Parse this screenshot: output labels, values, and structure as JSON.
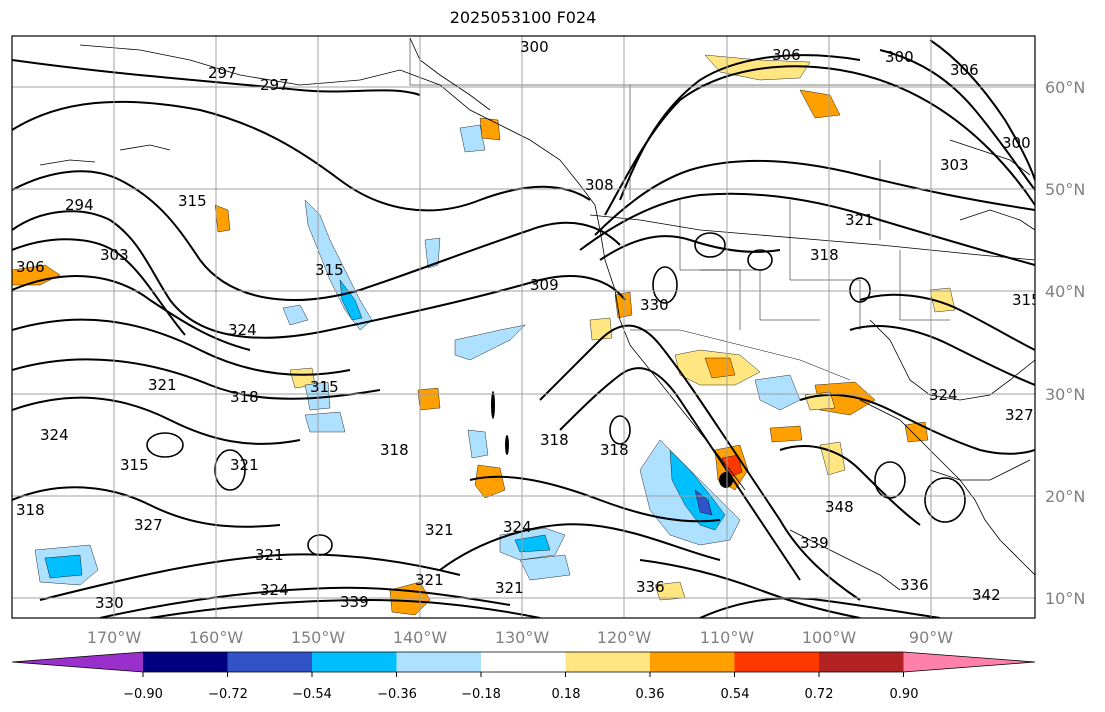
{
  "title": "2025053100 F024",
  "colors": {
    "frame": "#000000",
    "grid": "#a0a0a0",
    "contour": "#000000",
    "coast": "#000000",
    "axis_label": "#808080"
  },
  "lon_labels": [
    "170°W",
    "160°W",
    "150°W",
    "140°W",
    "130°W",
    "120°W",
    "110°W",
    "100°W",
    "90°W"
  ],
  "lat_labels": [
    "60°N",
    "50°N",
    "40°N",
    "30°N",
    "20°N",
    "10°N"
  ],
  "colorbar": {
    "ticks": [
      "−0.90",
      "−0.72",
      "−0.54",
      "−0.36",
      "−0.18",
      "0.18",
      "0.36",
      "0.54",
      "0.72",
      "0.90"
    ],
    "colors": [
      "#9a30cc",
      "#000080",
      "#3252c8",
      "#00bfff",
      "#aee0ff",
      "#ffffff",
      "#ffe680",
      "#ffa000",
      "#ff3800",
      "#b22222",
      "#ff80a8"
    ]
  },
  "contour_labels": [
    "297",
    "297",
    "300",
    "306",
    "300",
    "306",
    "294",
    "315",
    "306",
    "303",
    "300",
    "303",
    "308",
    "309",
    "315",
    "321",
    "330",
    "318",
    "324",
    "321",
    "318",
    "315",
    "324",
    "315",
    "318",
    "321",
    "318",
    "318",
    "318",
    "348",
    "339",
    "336",
    "342",
    "330",
    "324",
    "321",
    "324",
    "321",
    "339",
    "336",
    "321",
    "327",
    "321",
    "324",
    "327",
    "315"
  ]
}
